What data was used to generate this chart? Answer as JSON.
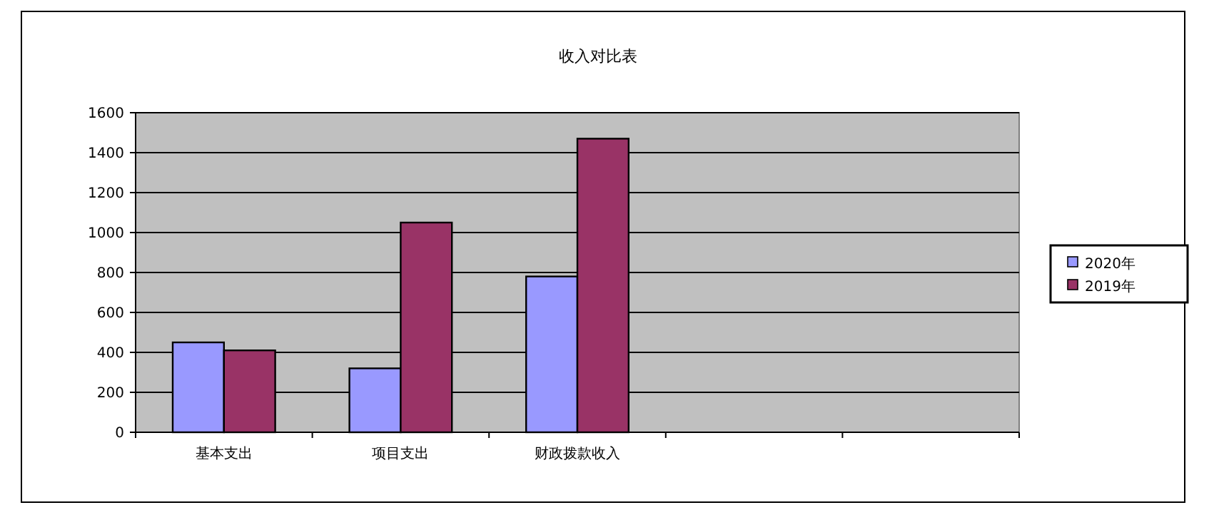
{
  "chart_data": {
    "type": "bar",
    "title": "收入对比表",
    "categories": [
      "基本支出",
      "项目支出",
      "财政拨款收入",
      null,
      null
    ],
    "series": [
      {
        "name": "2020年",
        "color": "#9999ff",
        "values": [
          450,
          320,
          780,
          null,
          null
        ]
      },
      {
        "name": "2019年",
        "color": "#993366",
        "values": [
          410,
          1050,
          1470,
          null,
          null
        ]
      }
    ],
    "ylim": [
      0,
      1600
    ],
    "yticks": [
      0,
      200,
      400,
      600,
      800,
      1000,
      1200,
      1400,
      1600
    ],
    "grid": "y",
    "legend": "right"
  }
}
